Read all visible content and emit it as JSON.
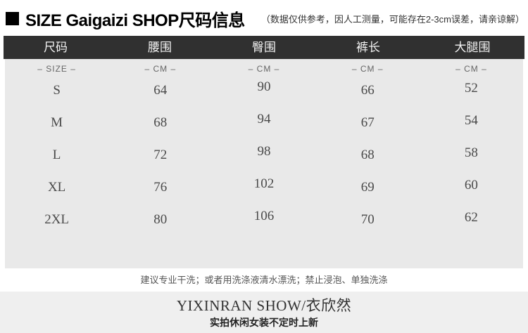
{
  "page": {
    "title": "SIZE Gaigaizi SHOP尺码信息",
    "note": "（数据仅供参考，因人工测量，可能存在2-3cm误差，请亲谅解）"
  },
  "size_table": {
    "columns": [
      "尺码",
      "腰围",
      "臀围",
      "裤长",
      "大腿围"
    ],
    "units": [
      "– SIZE –",
      "– CM –",
      "– CM –",
      "– CM –",
      "– CM –"
    ],
    "rows": [
      [
        "S",
        "64",
        "90",
        "66",
        "52"
      ],
      [
        "M",
        "68",
        "94",
        "67",
        "54"
      ],
      [
        "L",
        "72",
        "98",
        "68",
        "58"
      ],
      [
        "XL",
        "76",
        "102",
        "69",
        "60"
      ],
      [
        "2XL",
        "80",
        "106",
        "70",
        "62"
      ]
    ]
  },
  "care": {
    "text": "建议专业干洗；或者用洗涤液清水漂洗；禁止浸泡、单独洗涤"
  },
  "brand": {
    "name": "YIXINRAN SHOW/衣欣然",
    "tagline": "实拍休闲女装不定时上新"
  }
}
